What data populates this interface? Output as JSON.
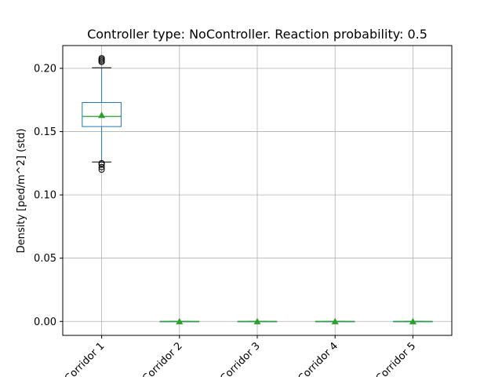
{
  "chart_data": {
    "type": "box",
    "title": "Controller type: NoController. Reaction probability: 0.5",
    "xlabel": "",
    "ylabel": "Density [ped/m^2] (std)",
    "ylim": [
      -0.011,
      0.218
    ],
    "yticks": [
      "0.00",
      "0.05",
      "0.10",
      "0.15",
      "0.20"
    ],
    "ytick_values": [
      0.0,
      0.05,
      0.1,
      0.15,
      0.2
    ],
    "categories": [
      "Corridor 1",
      "Corridor 2",
      "Corridor 3",
      "Corridor 4",
      "Corridor 5"
    ],
    "xtick_rotation": 45,
    "grid": true,
    "series": [
      {
        "category": "Corridor 1",
        "whisker_low": 0.126,
        "q1": 0.154,
        "median": 0.162,
        "mean": 0.163,
        "q3": 0.173,
        "whisker_high": 0.2005,
        "outliers": [
          0.12,
          0.122,
          0.124,
          0.125,
          0.205,
          0.206,
          0.207,
          0.208
        ]
      },
      {
        "category": "Corridor 2",
        "whisker_low": 0.0,
        "q1": 0.0,
        "median": 0.0,
        "mean": 0.0,
        "q3": 0.0,
        "whisker_high": 0.0,
        "outliers": []
      },
      {
        "category": "Corridor 3",
        "whisker_low": 0.0,
        "q1": 0.0,
        "median": 0.0,
        "mean": 0.0,
        "q3": 0.0,
        "whisker_high": 0.0,
        "outliers": []
      },
      {
        "category": "Corridor 4",
        "whisker_low": 0.0,
        "q1": 0.0,
        "median": 0.0,
        "mean": 0.0,
        "q3": 0.0,
        "whisker_high": 0.0,
        "outliers": []
      },
      {
        "category": "Corridor 5",
        "whisker_low": 0.0,
        "q1": 0.0,
        "median": 0.0,
        "mean": 0.0,
        "q3": 0.0,
        "whisker_high": 0.0,
        "outliers": []
      }
    ],
    "colors": {
      "box": "#1f77b4",
      "median": "#2ca02c",
      "mean": "#2ca02c",
      "whisker_cap": "#000000",
      "grid": "#b0b0b0",
      "axis": "#000000"
    }
  }
}
